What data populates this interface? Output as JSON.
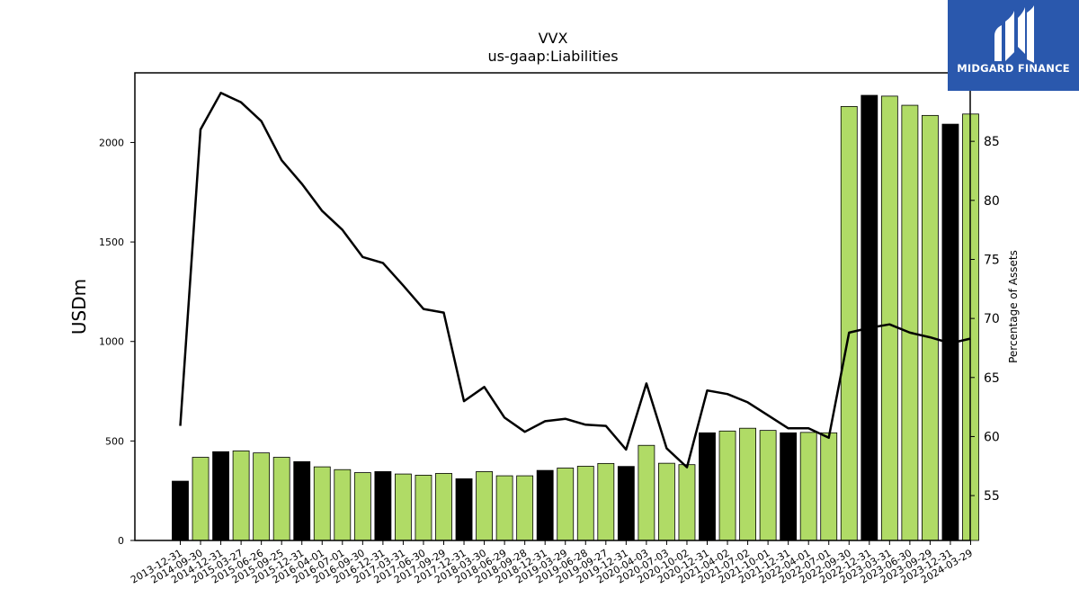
{
  "brand": {
    "name": "MIDGARD FINANCE",
    "background_color": "#2a58ad"
  },
  "chart_data": {
    "type": "bar",
    "title": "VVX",
    "subtitle": "us-gaap:Liabilities",
    "ylabel": "USDm",
    "y2label": "Percentage of Assets",
    "ylim": [
      0,
      2350
    ],
    "y2lim": [
      51.2,
      90.8
    ],
    "yticks": [
      0,
      500,
      1000,
      1500,
      2000
    ],
    "y2ticks": [
      55,
      60,
      65,
      70,
      75,
      80,
      85
    ],
    "grid": false,
    "colors": {
      "fiscal_year_end": "#000000",
      "quarter": "#b0db66",
      "line": "#000000"
    },
    "categories": [
      "2013-12-31",
      "2014-09-30",
      "2014-12-31",
      "2015-03-27",
      "2015-06-26",
      "2015-09-25",
      "2015-12-31",
      "2016-04-01",
      "2016-07-01",
      "2016-09-30",
      "2016-12-31",
      "2017-03-31",
      "2017-06-30",
      "2017-09-29",
      "2017-12-31",
      "2018-03-30",
      "2018-06-29",
      "2018-09-28",
      "2018-12-31",
      "2019-03-29",
      "2019-06-28",
      "2019-09-27",
      "2019-12-31",
      "2020-04-03",
      "2020-07-03",
      "2020-10-02",
      "2020-12-31",
      "2021-04-02",
      "2021-07-02",
      "2021-10-01",
      "2021-12-31",
      "2022-04-01",
      "2022-07-01",
      "2022-09-30",
      "2022-12-31",
      "2023-03-31",
      "2023-06-30",
      "2023-09-29",
      "2023-12-31",
      "2024-03-29"
    ],
    "series": [
      {
        "kind": "bar",
        "values": [
          298,
          418,
          446,
          450,
          440,
          418,
          396,
          370,
          356,
          341,
          346,
          334,
          328,
          337,
          310,
          346,
          325,
          325,
          352,
          364,
          373,
          387,
          372,
          478,
          388,
          381,
          541,
          550,
          564,
          553,
          541,
          543,
          541,
          2181,
          2237,
          2233,
          2187,
          2136,
          2092,
          2143
        ],
        "fiscal_year_end": [
          true,
          false,
          true,
          false,
          false,
          false,
          true,
          false,
          false,
          false,
          true,
          false,
          false,
          false,
          true,
          false,
          false,
          false,
          true,
          false,
          false,
          false,
          true,
          false,
          false,
          false,
          true,
          false,
          false,
          false,
          true,
          false,
          false,
          false,
          true,
          false,
          false,
          false,
          true,
          false
        ]
      },
      {
        "kind": "line",
        "axis": "right",
        "values": [
          60.9,
          86.0,
          89.1,
          88.3,
          86.7,
          83.4,
          81.4,
          79.1,
          77.5,
          75.2,
          74.7,
          72.8,
          70.8,
          70.5,
          63.0,
          64.2,
          61.6,
          60.4,
          61.3,
          61.5,
          61.0,
          60.9,
          58.9,
          64.5,
          59.0,
          57.4,
          63.9,
          63.6,
          62.9,
          61.8,
          60.7,
          60.7,
          59.9,
          68.8,
          69.2,
          69.5,
          68.8,
          68.4,
          67.9,
          68.3
        ]
      }
    ]
  }
}
